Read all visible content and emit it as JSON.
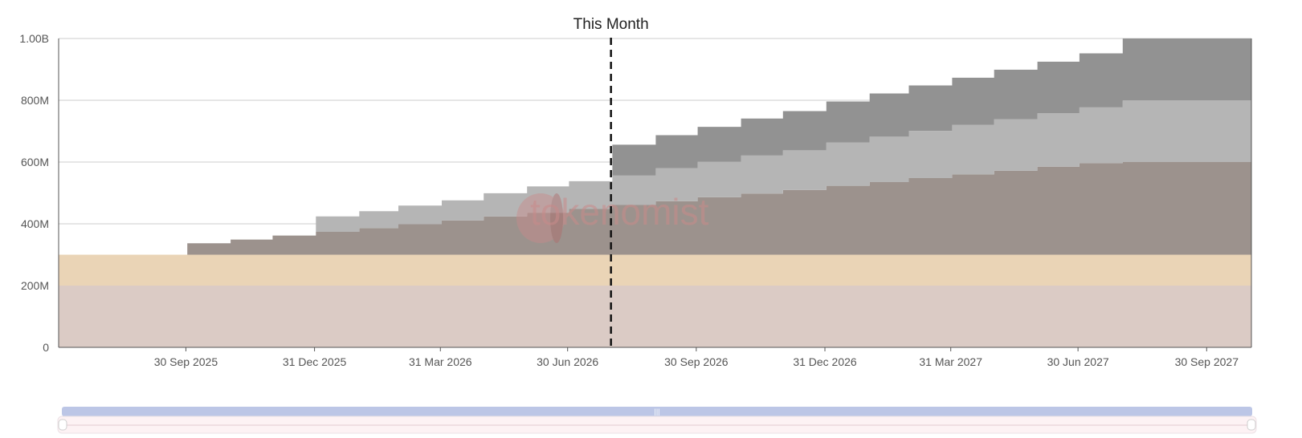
{
  "watermark": "tokenomist",
  "chart_data": {
    "type": "area",
    "stacked": true,
    "step": true,
    "marker": {
      "label": "This Month",
      "x": "2026-07-31"
    },
    "ylim": [
      0,
      1000000000
    ],
    "yticks": [
      {
        "v": 0,
        "label": "0"
      },
      {
        "v": 200000000,
        "label": "200M"
      },
      {
        "v": 400000000,
        "label": "400M"
      },
      {
        "v": 600000000,
        "label": "600M"
      },
      {
        "v": 800000000,
        "label": "800M"
      },
      {
        "v": 1000000000,
        "label": "1.00B"
      }
    ],
    "x": [
      "2025-07-01",
      "2025-08-01",
      "2025-09-01",
      "2025-10-01",
      "2025-11-01",
      "2025-12-01",
      "2026-01-01",
      "2026-02-01",
      "2026-03-01",
      "2026-04-01",
      "2026-05-01",
      "2026-06-01",
      "2026-07-01",
      "2026-08-01",
      "2026-09-01",
      "2026-10-01",
      "2026-11-01",
      "2026-12-01",
      "2027-01-01",
      "2027-02-01",
      "2027-03-01",
      "2027-04-01",
      "2027-05-01",
      "2027-06-01",
      "2027-07-01",
      "2027-08-01",
      "2027-09-01",
      "2027-10-01",
      "2027-11-01"
    ],
    "xlim": [
      "2025-07-01",
      "2027-11-01"
    ],
    "xticks": [
      {
        "date": "2025-09-30",
        "label": "30 Sep 2025"
      },
      {
        "date": "2025-12-31",
        "label": "31 Dec 2025"
      },
      {
        "date": "2026-03-31",
        "label": "31 Mar 2026"
      },
      {
        "date": "2026-06-30",
        "label": "30 Jun 2026"
      },
      {
        "date": "2026-09-30",
        "label": "30 Sep 2026"
      },
      {
        "date": "2026-12-31",
        "label": "31 Dec 2026"
      },
      {
        "date": "2027-03-31",
        "label": "31 Mar 2027"
      },
      {
        "date": "2027-06-30",
        "label": "30 Jun 2027"
      },
      {
        "date": "2027-09-30",
        "label": "30 Sep 2027"
      }
    ],
    "series": [
      {
        "color": "#dbcbc5",
        "values": [
          200,
          200,
          200,
          200,
          200,
          200,
          200,
          200,
          200,
          200,
          200,
          200,
          200,
          200,
          200,
          200,
          200,
          200,
          200,
          200,
          200,
          200,
          200,
          200,
          200,
          200,
          200,
          200,
          200
        ]
      },
      {
        "color": "#ead4b6",
        "values": [
          100,
          100,
          100,
          100,
          100,
          100,
          100,
          100,
          100,
          100,
          100,
          100,
          100,
          100,
          100,
          100,
          100,
          100,
          100,
          100,
          100,
          100,
          100,
          100,
          100,
          100,
          100,
          100,
          100
        ]
      },
      {
        "color": "#9c928d",
        "values": [
          0,
          0,
          0,
          37,
          49,
          62,
          74,
          86,
          99,
          111,
          124,
          136,
          148,
          161,
          173,
          186,
          198,
          210,
          223,
          235,
          248,
          260,
          272,
          285,
          297,
          300,
          300,
          300,
          300
        ]
      },
      {
        "color": "#b5b5b5",
        "values": [
          0,
          0,
          0,
          0,
          0,
          0,
          50,
          55,
          60,
          65,
          75,
          85,
          90,
          95,
          107,
          115,
          123,
          128,
          140,
          147,
          153,
          160,
          167,
          173,
          180,
          200,
          200,
          200,
          200
        ]
      },
      {
        "color": "#929292",
        "values": [
          0,
          0,
          0,
          0,
          0,
          0,
          0,
          0,
          0,
          0,
          0,
          0,
          0,
          100,
          107,
          113,
          120,
          127,
          133,
          140,
          147,
          153,
          160,
          167,
          175,
          200,
          200,
          200,
          200
        ]
      }
    ]
  }
}
